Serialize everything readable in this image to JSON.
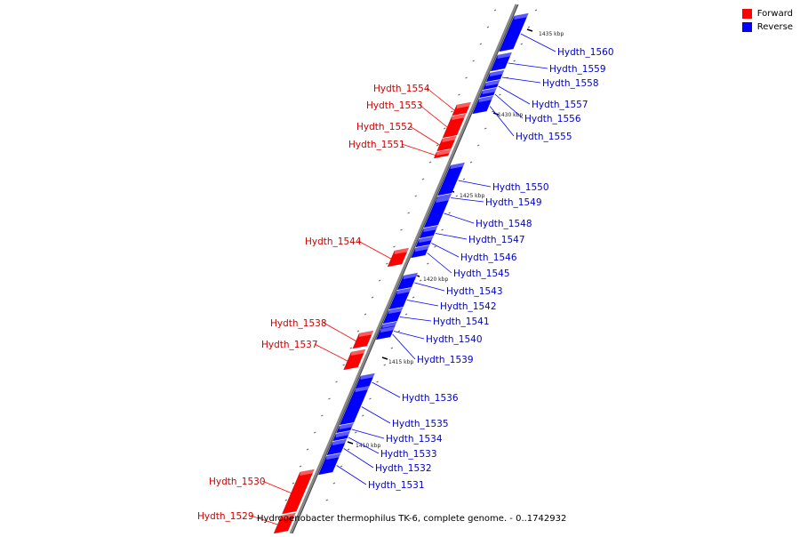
{
  "legend": {
    "forward_label": "Forward",
    "reverse_label": "Reverse",
    "forward_color": "#ff0000",
    "reverse_color": "#0000ff"
  },
  "caption": "Hydrogenobacter thermophilus TK-6, complete genome. - 0..1742932",
  "scale_ticks": [
    "1435 kbp",
    "1430 kbp",
    "1425 kbp",
    "1420 kbp",
    "1415 kbp",
    "1410 kbp"
  ],
  "genes": [
    {
      "id": "Hydth_1560",
      "strand": "reverse"
    },
    {
      "id": "Hydth_1559",
      "strand": "reverse"
    },
    {
      "id": "Hydth_1558",
      "strand": "reverse"
    },
    {
      "id": "Hydth_1557",
      "strand": "reverse"
    },
    {
      "id": "Hydth_1556",
      "strand": "reverse"
    },
    {
      "id": "Hydth_1555",
      "strand": "reverse"
    },
    {
      "id": "Hydth_1554",
      "strand": "forward"
    },
    {
      "id": "Hydth_1553",
      "strand": "forward"
    },
    {
      "id": "Hydth_1552",
      "strand": "forward"
    },
    {
      "id": "Hydth_1551",
      "strand": "forward"
    },
    {
      "id": "Hydth_1550",
      "strand": "reverse"
    },
    {
      "id": "Hydth_1549",
      "strand": "reverse"
    },
    {
      "id": "Hydth_1548",
      "strand": "reverse"
    },
    {
      "id": "Hydth_1547",
      "strand": "reverse"
    },
    {
      "id": "Hydth_1546",
      "strand": "reverse"
    },
    {
      "id": "Hydth_1545",
      "strand": "reverse"
    },
    {
      "id": "Hydth_1544",
      "strand": "forward"
    },
    {
      "id": "Hydth_1543",
      "strand": "reverse"
    },
    {
      "id": "Hydth_1542",
      "strand": "reverse"
    },
    {
      "id": "Hydth_1541",
      "strand": "reverse"
    },
    {
      "id": "Hydth_1540",
      "strand": "reverse"
    },
    {
      "id": "Hydth_1539",
      "strand": "reverse"
    },
    {
      "id": "Hydth_1538",
      "strand": "forward"
    },
    {
      "id": "Hydth_1537",
      "strand": "forward"
    },
    {
      "id": "Hydth_1536",
      "strand": "reverse"
    },
    {
      "id": "Hydth_1535",
      "strand": "reverse"
    },
    {
      "id": "Hydth_1534",
      "strand": "reverse"
    },
    {
      "id": "Hydth_1533",
      "strand": "reverse"
    },
    {
      "id": "Hydth_1532",
      "strand": "reverse"
    },
    {
      "id": "Hydth_1531",
      "strand": "reverse"
    },
    {
      "id": "Hydth_1530",
      "strand": "forward"
    },
    {
      "id": "Hydth_1529",
      "strand": "forward"
    }
  ]
}
